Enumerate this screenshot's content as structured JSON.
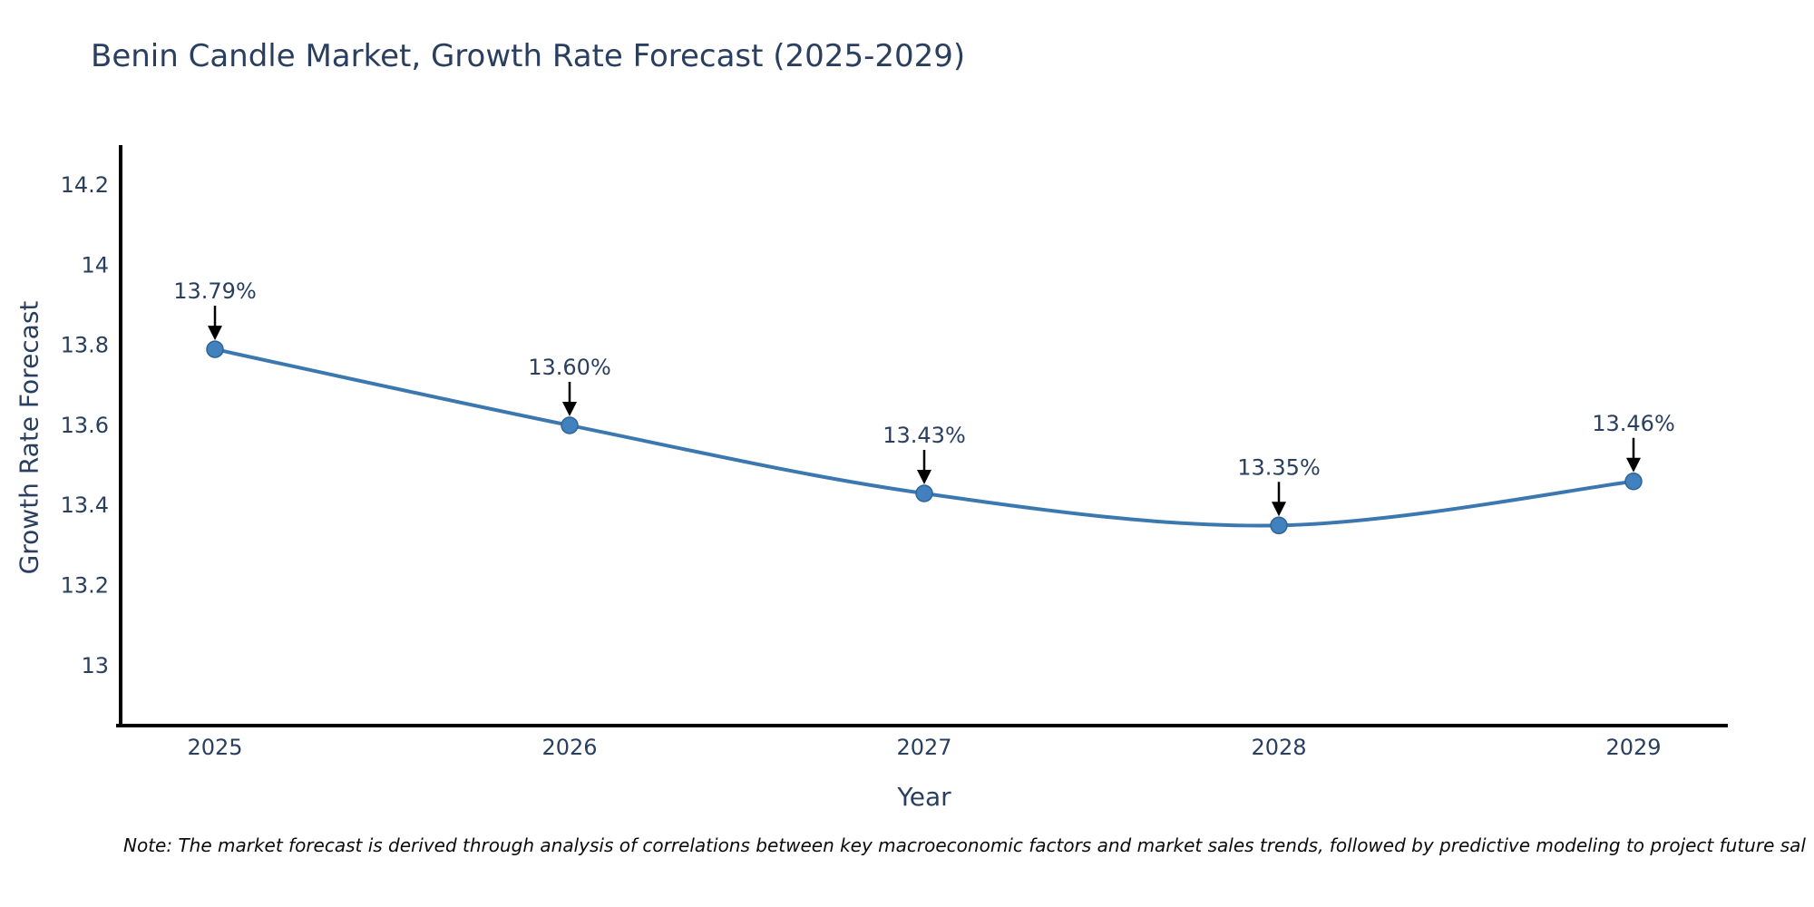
{
  "title": "Benin Candle Market, Growth Rate Forecast (2025-2029)",
  "footnote": "Note: The market forecast is derived through analysis of correlations between key macroeconomic factors and market sales trends, followed by predictive modeling to project future sal",
  "chart_data": {
    "type": "line",
    "title": "Benin Candle Market, Growth Rate Forecast (2025-2029)",
    "xlabel": "Year",
    "ylabel": "Growth Rate Forecast",
    "categories": [
      "2025",
      "2026",
      "2027",
      "2028",
      "2029"
    ],
    "series": [
      {
        "name": "Growth Rate Forecast",
        "values": [
          13.79,
          13.6,
          13.43,
          13.35,
          13.46
        ]
      }
    ],
    "point_labels": [
      "13.79%",
      "13.60%",
      "13.43%",
      "13.35%",
      "13.46%"
    ],
    "y_tick_labels": [
      "13",
      "13.2",
      "13.4",
      "13.6",
      "13.8",
      "14",
      "14.2"
    ],
    "y_tick_values": [
      13,
      13.2,
      13.4,
      13.6,
      13.8,
      14,
      14.2
    ],
    "ylim": [
      12.85,
      14.3
    ],
    "grid": false,
    "legend": "none",
    "line_shape": "spline",
    "marker": "circle",
    "colors": {
      "line": "#3c78b0",
      "marker_fill": "#4181bd",
      "marker_edge": "#2f6496",
      "text": "#2a3f5f",
      "axis_line": "#000000",
      "annotation_arrow": "#000000",
      "note_text": "#0b0b0b",
      "background": "#ffffff"
    }
  }
}
